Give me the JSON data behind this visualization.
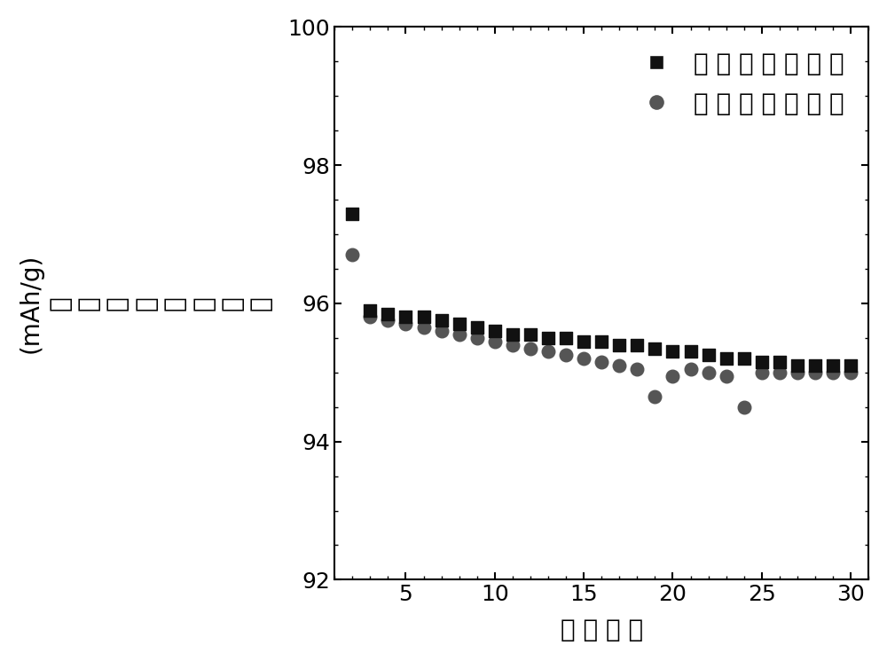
{
  "charge_x": [
    2,
    3,
    4,
    5,
    6,
    7,
    8,
    9,
    10,
    11,
    12,
    13,
    14,
    15,
    16,
    17,
    18,
    19,
    20,
    21,
    22,
    23,
    24,
    25,
    26,
    27,
    28,
    29,
    30
  ],
  "charge_y": [
    97.3,
    95.9,
    95.85,
    95.8,
    95.8,
    95.75,
    95.7,
    95.65,
    95.6,
    95.55,
    95.55,
    95.5,
    95.5,
    95.45,
    95.45,
    95.4,
    95.4,
    95.35,
    95.3,
    95.3,
    95.25,
    95.2,
    95.2,
    95.15,
    95.15,
    95.1,
    95.1,
    95.1,
    95.1
  ],
  "discharge_x": [
    2,
    3,
    4,
    5,
    6,
    7,
    8,
    9,
    10,
    11,
    12,
    13,
    14,
    15,
    16,
    17,
    18,
    19,
    20,
    21,
    22,
    23,
    24,
    25,
    26,
    27,
    28,
    29,
    30
  ],
  "discharge_y": [
    96.7,
    95.8,
    95.75,
    95.7,
    95.65,
    95.6,
    95.55,
    95.5,
    95.45,
    95.4,
    95.35,
    95.3,
    95.25,
    95.2,
    95.15,
    95.1,
    95.05,
    94.65,
    94.95,
    95.05,
    95.0,
    94.95,
    94.5,
    95.0,
    95.0,
    95.0,
    95.0,
    95.0,
    95.0
  ],
  "xlabel": "循 环 次 数",
  "ylabel_chars": [
    "充",
    "放",
    "电",
    "比",
    "质",
    "量",
    "容",
    "量"
  ],
  "ylabel_top": "(mAh/g)",
  "legend_charge": "充 电 比 质 量 容 量",
  "legend_discharge": "放 电 比 质 量 容 量",
  "xlim": [
    1,
    31
  ],
  "ylim": [
    92,
    100
  ],
  "xticks": [
    5,
    10,
    15,
    20,
    25,
    30
  ],
  "yticks": [
    92,
    94,
    96,
    98,
    100
  ],
  "charge_color": "#111111",
  "discharge_color": "#555555",
  "background_color": "#ffffff",
  "charge_marker_size": 90,
  "discharge_marker_size": 110,
  "fontsize_label": 20,
  "fontsize_tick": 18,
  "fontsize_legend": 20,
  "fontsize_ylabel": 20
}
